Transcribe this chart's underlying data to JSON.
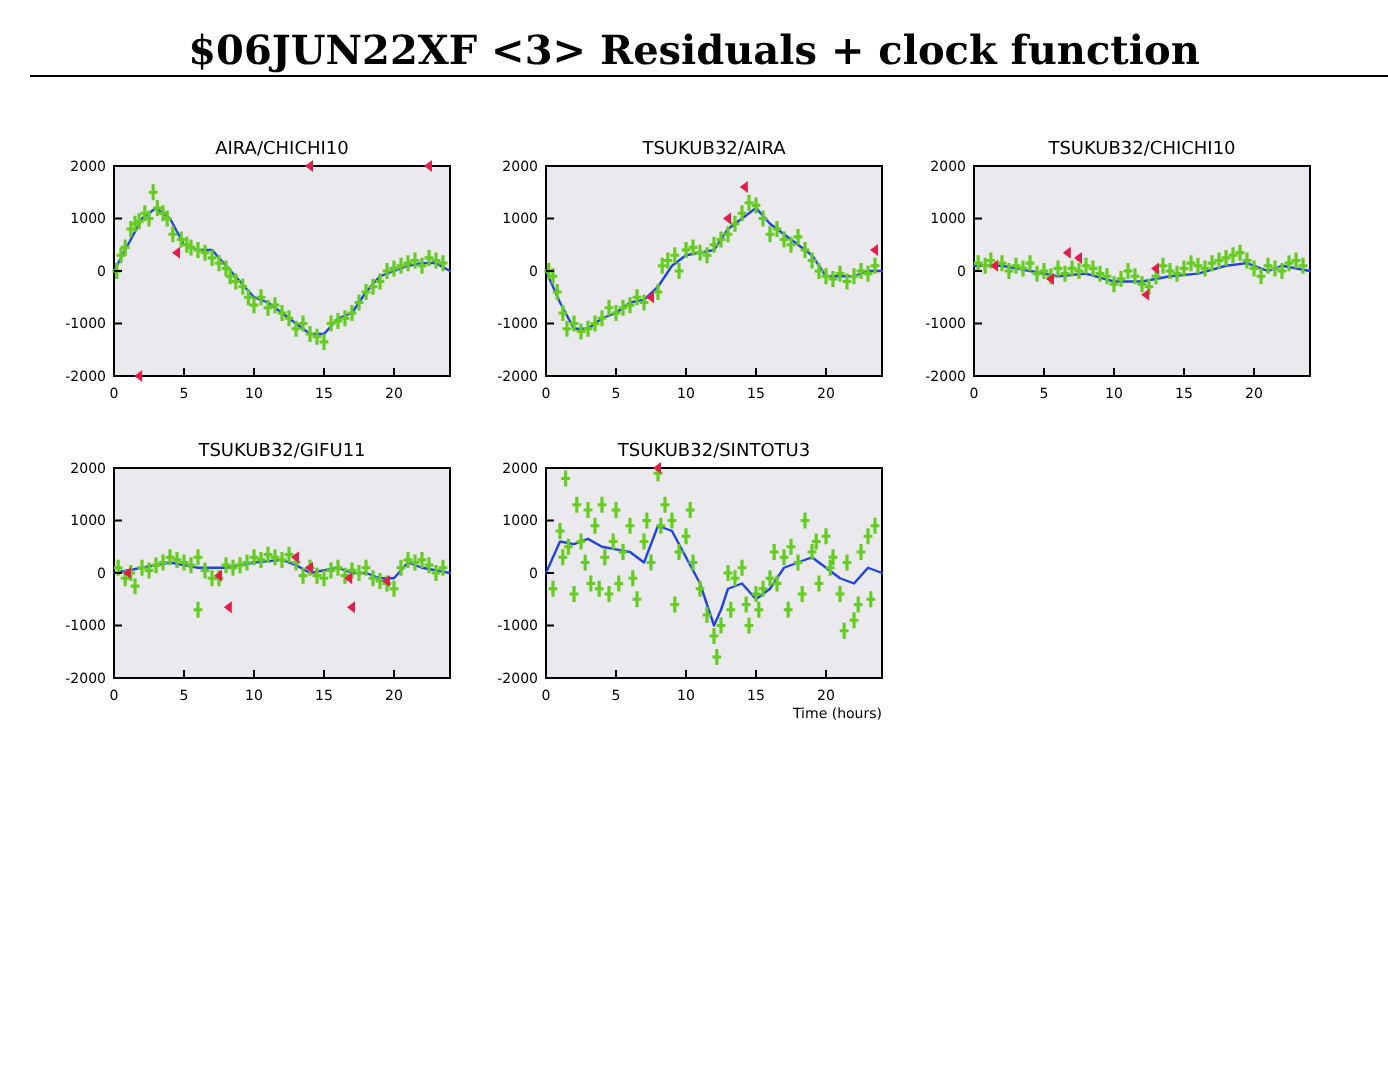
{
  "chart_data": [
    {
      "type": "scatter",
      "title": "AIRA/CHICHI10",
      "annotations": [
        "$06JUN22XF <3> Residuals + clock function"
      ],
      "xlim": [
        0,
        24
      ],
      "ylim": [
        -2000,
        2000
      ],
      "xticks": [
        0,
        5,
        10,
        15,
        20
      ],
      "yticks": [
        -2000,
        -1000,
        0,
        1000,
        2000
      ],
      "series": [
        {
          "type": "line",
          "color": "#2244dd",
          "x": [
            0,
            1,
            2,
            3,
            4,
            5,
            6,
            7,
            8,
            9,
            10,
            11,
            12,
            13,
            14,
            15,
            16,
            17,
            18,
            19,
            20,
            21,
            22,
            23,
            24
          ],
          "values": [
            0,
            500,
            1000,
            1200,
            1000,
            500,
            400,
            400,
            100,
            -200,
            -500,
            -600,
            -800,
            -1000,
            -1200,
            -1200,
            -900,
            -800,
            -400,
            -100,
            0,
            100,
            150,
            150,
            0
          ]
        },
        {
          "marker": "cross",
          "color": "#66cc22",
          "x": [
            0.2,
            0.5,
            0.8,
            1.2,
            1.5,
            1.8,
            2.2,
            2.5,
            2.8,
            3.1,
            3.5,
            3.8,
            4.2,
            4.8,
            5.2,
            5.5,
            6,
            6.5,
            7,
            7.5,
            8,
            8.3,
            8.7,
            9.2,
            9.6,
            10,
            10.5,
            11,
            11.5,
            12,
            12.5,
            13,
            13.5,
            14,
            14.5,
            15,
            15.5,
            16,
            16.5,
            17,
            17.5,
            18,
            18.5,
            19,
            19.5,
            20,
            20.5,
            21,
            21.5,
            22,
            22.5,
            23,
            23.5
          ],
          "values": [
            0,
            300,
            450,
            800,
            900,
            950,
            1100,
            1000,
            1500,
            1200,
            1100,
            1000,
            700,
            600,
            500,
            450,
            400,
            350,
            250,
            150,
            50,
            -100,
            -200,
            -300,
            -500,
            -650,
            -500,
            -700,
            -650,
            -800,
            -900,
            -1100,
            -1000,
            -1200,
            -1250,
            -1350,
            -1000,
            -950,
            -900,
            -800,
            -600,
            -400,
            -300,
            -200,
            0,
            50,
            100,
            150,
            200,
            100,
            250,
            200,
            150
          ]
        },
        {
          "type": "scatter",
          "marker": "triangle",
          "color": "#e0204a",
          "x": [
            4.5,
            14,
            22.5,
            1.8
          ],
          "values": [
            350,
            2000,
            2000,
            -2000
          ]
        }
      ]
    },
    {
      "type": "scatter",
      "title": "TSUKUB32/AIRA",
      "xlim": [
        0,
        24
      ],
      "ylim": [
        -2000,
        2000
      ],
      "xticks": [
        0,
        5,
        10,
        15,
        20
      ],
      "yticks": [
        -2000,
        -1000,
        0,
        1000,
        2000
      ],
      "series": [
        {
          "type": "line",
          "color": "#2244dd",
          "x": [
            0,
            1,
            2,
            3,
            4,
            5,
            6,
            7,
            8,
            9,
            10,
            11,
            12,
            13,
            14,
            15,
            16,
            17,
            18,
            19,
            20,
            21,
            22,
            23,
            24
          ],
          "values": [
            0,
            -600,
            -1100,
            -1100,
            -900,
            -800,
            -600,
            -550,
            -300,
            100,
            300,
            350,
            400,
            800,
            1000,
            1200,
            900,
            700,
            500,
            300,
            -100,
            -100,
            -100,
            0,
            0
          ]
        },
        {
          "marker": "cross",
          "color": "#66cc22",
          "x": [
            0.2,
            0.5,
            0.8,
            1.2,
            1.5,
            2,
            2.5,
            3,
            3.5,
            4,
            4.5,
            5,
            5.5,
            6,
            6.5,
            7,
            8,
            8.3,
            8.7,
            9.2,
            9.5,
            10,
            10.5,
            11,
            11.5,
            12,
            12.5,
            13,
            13.5,
            14,
            14.5,
            15,
            15.5,
            16,
            16.5,
            17,
            17.5,
            18,
            18.5,
            19,
            19.5,
            20,
            20.5,
            21,
            21.5,
            22,
            22.5,
            23,
            23.5
          ],
          "values": [
            0,
            -100,
            -400,
            -800,
            -1100,
            -1000,
            -1150,
            -1100,
            -1000,
            -900,
            -700,
            -800,
            -700,
            -650,
            -500,
            -600,
            -400,
            100,
            200,
            300,
            0,
            400,
            450,
            350,
            300,
            500,
            600,
            700,
            900,
            1100,
            1300,
            1250,
            1000,
            700,
            800,
            600,
            500,
            650,
            400,
            200,
            0,
            -100,
            -150,
            -50,
            -200,
            -100,
            0,
            -50,
            100
          ]
        },
        {
          "type": "scatter",
          "marker": "triangle",
          "color": "#e0204a",
          "x": [
            7.5,
            13,
            14.2,
            23.5
          ],
          "values": [
            -500,
            1000,
            1600,
            400
          ]
        }
      ]
    },
    {
      "type": "scatter",
      "title": "TSUKUB32/CHICHI10",
      "xlim": [
        0,
        24
      ],
      "ylim": [
        -2000,
        2000
      ],
      "xticks": [
        0,
        5,
        10,
        15,
        20
      ],
      "yticks": [
        -2000,
        -1000,
        0,
        1000,
        2000
      ],
      "series": [
        {
          "type": "line",
          "color": "#2244dd",
          "x": [
            0,
            2,
            4,
            6,
            8,
            10,
            12,
            14,
            16,
            18,
            19.5,
            21,
            22,
            24
          ],
          "values": [
            100,
            100,
            0,
            -100,
            -50,
            -200,
            -200,
            -100,
            -50,
            100,
            150,
            0,
            100,
            0
          ]
        },
        {
          "marker": "cross",
          "color": "#66cc22",
          "x": [
            0.3,
            0.8,
            1.2,
            2,
            2.5,
            3,
            3.5,
            4,
            4.5,
            5,
            5.5,
            6,
            6.5,
            7,
            7.5,
            8,
            8.5,
            9,
            9.5,
            10,
            10.5,
            11,
            11.5,
            12,
            12.5,
            13,
            13.5,
            14,
            14.5,
            15,
            15.5,
            16,
            16.5,
            17,
            17.5,
            18,
            18.5,
            19,
            19.5,
            20,
            20.5,
            21,
            21.5,
            22,
            22.5,
            23,
            23.5
          ],
          "values": [
            150,
            100,
            200,
            150,
            0,
            100,
            50,
            150,
            -50,
            0,
            -100,
            50,
            -50,
            50,
            0,
            100,
            50,
            -50,
            -100,
            -250,
            -150,
            0,
            -100,
            -250,
            -300,
            -100,
            100,
            0,
            -50,
            50,
            150,
            100,
            50,
            150,
            200,
            250,
            300,
            350,
            200,
            50,
            -100,
            100,
            50,
            0,
            150,
            200,
            100
          ]
        },
        {
          "type": "scatter",
          "marker": "triangle",
          "color": "#e0204a",
          "x": [
            1.5,
            5.5,
            6.7,
            7.5,
            12.3,
            13
          ],
          "values": [
            100,
            -150,
            350,
            250,
            -450,
            50
          ]
        }
      ]
    },
    {
      "type": "scatter",
      "title": "TSUKUB32/GIFU11",
      "xlim": [
        0,
        24
      ],
      "ylim": [
        -2000,
        2000
      ],
      "xticks": [
        0,
        5,
        10,
        15,
        20
      ],
      "yticks": [
        -2000,
        -1000,
        0,
        1000,
        2000
      ],
      "series": [
        {
          "type": "line",
          "color": "#2244dd",
          "x": [
            0,
            2,
            4,
            6,
            8,
            10,
            12,
            13,
            14,
            16,
            17,
            18,
            19,
            20,
            21,
            22,
            24
          ],
          "values": [
            0,
            100,
            200,
            100,
            100,
            200,
            250,
            150,
            0,
            100,
            0,
            0,
            -100,
            -100,
            200,
            100,
            0
          ]
        },
        {
          "marker": "cross",
          "color": "#66cc22",
          "x": [
            0.3,
            0.8,
            1.2,
            1.5,
            2,
            2.5,
            3,
            3.5,
            4,
            4.5,
            5,
            5.5,
            6,
            6,
            6.5,
            7,
            7.5,
            8,
            8.5,
            9,
            9.5,
            10,
            10.5,
            11,
            11.5,
            12,
            12.5,
            13,
            13.5,
            14,
            14.5,
            15,
            15.5,
            16,
            16.5,
            17,
            17.5,
            18,
            18.5,
            19,
            19.5,
            20,
            20.5,
            21,
            21.5,
            22,
            22.5,
            23,
            23.5
          ],
          "values": [
            100,
            -100,
            0,
            -250,
            100,
            50,
            150,
            200,
            300,
            250,
            200,
            150,
            300,
            -700,
            50,
            -100,
            -100,
            150,
            100,
            150,
            200,
            300,
            250,
            350,
            300,
            250,
            350,
            200,
            -50,
            100,
            -50,
            -100,
            50,
            100,
            -50,
            50,
            0,
            100,
            -100,
            -150,
            -200,
            -300,
            100,
            250,
            200,
            250,
            150,
            0,
            100
          ]
        },
        {
          "type": "scatter",
          "marker": "triangle",
          "color": "#e0204a",
          "x": [
            1,
            7.5,
            8.2,
            13,
            14,
            16.8,
            17,
            19.5
          ],
          "values": [
            0,
            -50,
            -650,
            300,
            100,
            -100,
            -650,
            -150
          ]
        }
      ]
    },
    {
      "type": "scatter",
      "title": "TSUKUB32/SINTOTU3",
      "xlabel": "Time (hours)",
      "xlim": [
        0,
        24
      ],
      "ylim": [
        -2000,
        2000
      ],
      "xticks": [
        0,
        5,
        10,
        15,
        20
      ],
      "yticks": [
        -2000,
        -1000,
        0,
        1000,
        2000
      ],
      "series": [
        {
          "type": "line",
          "color": "#2244dd",
          "x": [
            0,
            1,
            2,
            3,
            4,
            5,
            6,
            7,
            8,
            9,
            10,
            11,
            12,
            12.5,
            13,
            14,
            15,
            16,
            17,
            18,
            19,
            20,
            21,
            22,
            23,
            24
          ],
          "values": [
            0,
            600,
            550,
            650,
            500,
            450,
            400,
            200,
            900,
            800,
            300,
            -200,
            -1000,
            -700,
            -300,
            -200,
            -500,
            -300,
            100,
            200,
            300,
            100,
            -100,
            -200,
            100,
            0
          ]
        },
        {
          "marker": "cross",
          "color": "#66cc22",
          "x": [
            0.5,
            1,
            1.2,
            1.4,
            1.6,
            2,
            2.2,
            2.5,
            2.8,
            3,
            3.2,
            3.5,
            3.8,
            4,
            4.2,
            4.5,
            4.8,
            5,
            5.2,
            5.5,
            6,
            6.2,
            6.5,
            7,
            7.2,
            7.5,
            8,
            8.2,
            8.5,
            9,
            9.2,
            9.5,
            10,
            10.3,
            10.5,
            11,
            11.5,
            12,
            12.2,
            12.5,
            13,
            13.2,
            13.5,
            14,
            14.3,
            14.5,
            15,
            15.2,
            15.5,
            16,
            16.3,
            16.5,
            17,
            17.3,
            17.5,
            18,
            18.3,
            18.5,
            19,
            19.3,
            19.5,
            20,
            20.3,
            20.5,
            21,
            21.3,
            21.5,
            22,
            22.3,
            22.5,
            23,
            23.2,
            23.5
          ],
          "values": [
            -300,
            800,
            300,
            1800,
            500,
            -400,
            1300,
            600,
            200,
            1200,
            -200,
            900,
            -300,
            1300,
            300,
            -400,
            600,
            1200,
            -200,
            400,
            900,
            -100,
            -500,
            600,
            1000,
            200,
            1900,
            900,
            1300,
            1000,
            -600,
            400,
            700,
            1200,
            200,
            -300,
            -800,
            -1200,
            -1600,
            -1000,
            0,
            -700,
            -100,
            100,
            -600,
            -1000,
            -400,
            -700,
            -300,
            -100,
            400,
            -200,
            300,
            -700,
            500,
            200,
            -400,
            1000,
            400,
            600,
            -200,
            700,
            100,
            300,
            -400,
            -1100,
            200,
            -900,
            -600,
            400,
            700,
            -500,
            900
          ]
        },
        {
          "type": "scatter",
          "marker": "triangle",
          "color": "#e0204a",
          "x": [
            8
          ],
          "values": [
            2000
          ]
        }
      ]
    }
  ]
}
